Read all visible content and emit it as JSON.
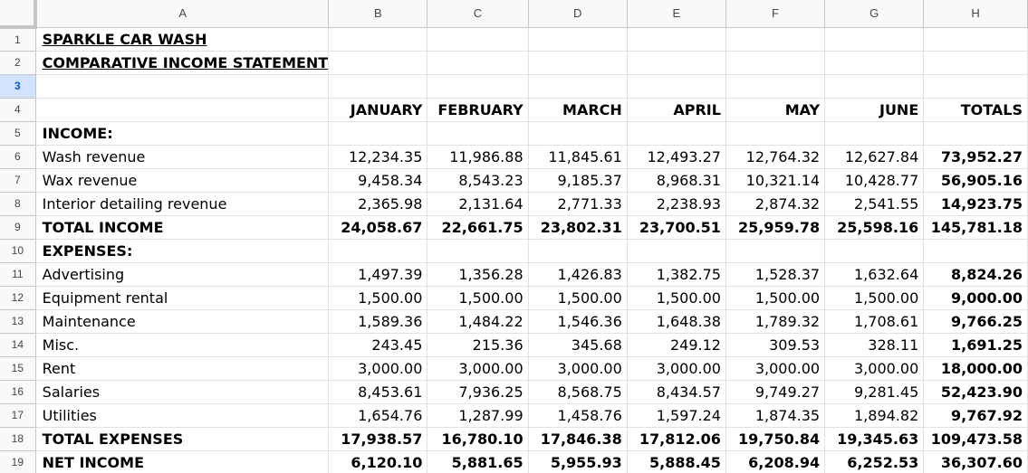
{
  "columns": [
    "A",
    "B",
    "C",
    "D",
    "E",
    "F",
    "G",
    "H"
  ],
  "selected_row": 3,
  "rows": [
    {
      "num": "1",
      "cells": [
        "SPARKLE CAR WASH",
        "",
        "",
        "",
        "",
        "",
        "",
        ""
      ]
    },
    {
      "num": "2",
      "cells": [
        "COMPARATIVE INCOME STATEMENT",
        "",
        "",
        "",
        "",
        "",
        "",
        ""
      ]
    },
    {
      "num": "3",
      "cells": [
        "",
        "",
        "",
        "",
        "",
        "",
        "",
        ""
      ]
    },
    {
      "num": "4",
      "cells": [
        "",
        "JANUARY",
        "FEBRUARY",
        "MARCH",
        "APRIL",
        "MAY",
        "JUNE",
        "TOTALS"
      ]
    },
    {
      "num": "5",
      "cells": [
        "INCOME:",
        "",
        "",
        "",
        "",
        "",
        "",
        ""
      ]
    },
    {
      "num": "6",
      "cells": [
        "Wash revenue",
        "12,234.35",
        "11,986.88",
        "11,845.61",
        "12,493.27",
        "12,764.32",
        "12,627.84",
        "73,952.27"
      ]
    },
    {
      "num": "7",
      "cells": [
        "Wax revenue",
        "9,458.34",
        "8,543.23",
        "9,185.37",
        "8,968.31",
        "10,321.14",
        "10,428.77",
        "56,905.16"
      ]
    },
    {
      "num": "8",
      "cells": [
        "Interior detailing revenue",
        "2,365.98",
        "2,131.64",
        "2,771.33",
        "2,238.93",
        "2,874.32",
        "2,541.55",
        "14,923.75"
      ]
    },
    {
      "num": "9",
      "cells": [
        "TOTAL INCOME",
        "24,058.67",
        "22,661.75",
        "23,802.31",
        "23,700.51",
        "25,959.78",
        "25,598.16",
        "145,781.18"
      ]
    },
    {
      "num": "10",
      "cells": [
        "EXPENSES:",
        "",
        "",
        "",
        "",
        "",
        "",
        ""
      ]
    },
    {
      "num": "11",
      "cells": [
        "Advertising",
        "1,497.39",
        "1,356.28",
        "1,426.83",
        "1,382.75",
        "1,528.37",
        "1,632.64",
        "8,824.26"
      ]
    },
    {
      "num": "12",
      "cells": [
        "Equipment rental",
        "1,500.00",
        "1,500.00",
        "1,500.00",
        "1,500.00",
        "1,500.00",
        "1,500.00",
        "9,000.00"
      ]
    },
    {
      "num": "13",
      "cells": [
        "Maintenance",
        "1,589.36",
        "1,484.22",
        "1,546.36",
        "1,648.38",
        "1,789.32",
        "1,708.61",
        "9,766.25"
      ]
    },
    {
      "num": "14",
      "cells": [
        "Misc.",
        "243.45",
        "215.36",
        "345.68",
        "249.12",
        "309.53",
        "328.11",
        "1,691.25"
      ]
    },
    {
      "num": "15",
      "cells": [
        "Rent",
        "3,000.00",
        "3,000.00",
        "3,000.00",
        "3,000.00",
        "3,000.00",
        "3,000.00",
        "18,000.00"
      ]
    },
    {
      "num": "16",
      "cells": [
        "Salaries",
        "8,453.61",
        "7,936.25",
        "8,568.75",
        "8,434.57",
        "9,749.27",
        "9,281.45",
        "52,423.90"
      ]
    },
    {
      "num": "17",
      "cells": [
        "Utilities",
        "1,654.76",
        "1,287.99",
        "1,458.76",
        "1,597.24",
        "1,874.35",
        "1,894.82",
        "9,767.92"
      ]
    },
    {
      "num": "18",
      "cells": [
        "TOTAL EXPENSES",
        "17,938.57",
        "16,780.10",
        "17,846.38",
        "17,812.06",
        "19,750.84",
        "19,345.63",
        "109,473.58"
      ]
    },
    {
      "num": "19",
      "cells": [
        "NET INCOME",
        "6,120.10",
        "5,881.65",
        "5,955.93",
        "5,888.45",
        "6,208.94",
        "6,252.53",
        "36,307.60"
      ]
    }
  ]
}
